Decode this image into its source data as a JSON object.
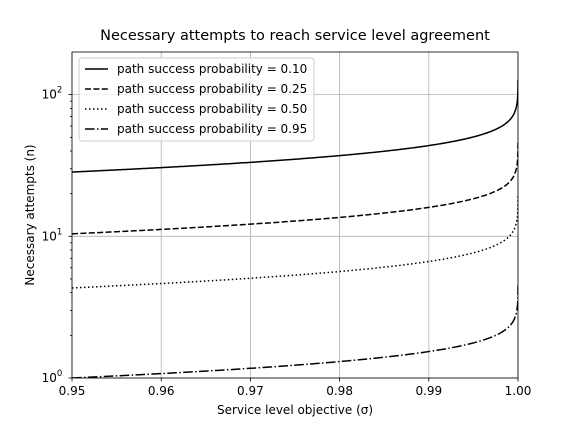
{
  "chart_data": {
    "type": "line",
    "title": "Necessary attempts to reach service level agreement",
    "xlabel": "Service level objective (σ)",
    "ylabel": "Necessary attempts (n)",
    "xlim": [
      0.95,
      1.0
    ],
    "ylim": [
      1,
      200
    ],
    "yscale": "log",
    "grid": true,
    "legend_placement": "top-left",
    "x_ticks": [
      {
        "value": 0.95,
        "label": "0.95"
      },
      {
        "value": 0.96,
        "label": "0.96"
      },
      {
        "value": 0.97,
        "label": "0.97"
      },
      {
        "value": 0.98,
        "label": "0.98"
      },
      {
        "value": 0.99,
        "label": "0.99"
      },
      {
        "value": 1.0,
        "label": "1.00"
      }
    ],
    "y_ticks": [
      {
        "value": 1,
        "base": "10",
        "exp": "0"
      },
      {
        "value": 10,
        "base": "10",
        "exp": "1"
      },
      {
        "value": 100,
        "base": "10",
        "exp": "2"
      }
    ],
    "series": [
      {
        "name": "path success probability = 0.10",
        "p": 0.1,
        "dash": "solid"
      },
      {
        "name": "path success probability = 0.25",
        "p": 0.25,
        "dash": "dashed"
      },
      {
        "name": "path success probability = 0.50",
        "p": 0.5,
        "dash": "dotted"
      },
      {
        "name": "path success probability = 0.95",
        "p": 0.95,
        "dash": "dashdot"
      }
    ]
  }
}
